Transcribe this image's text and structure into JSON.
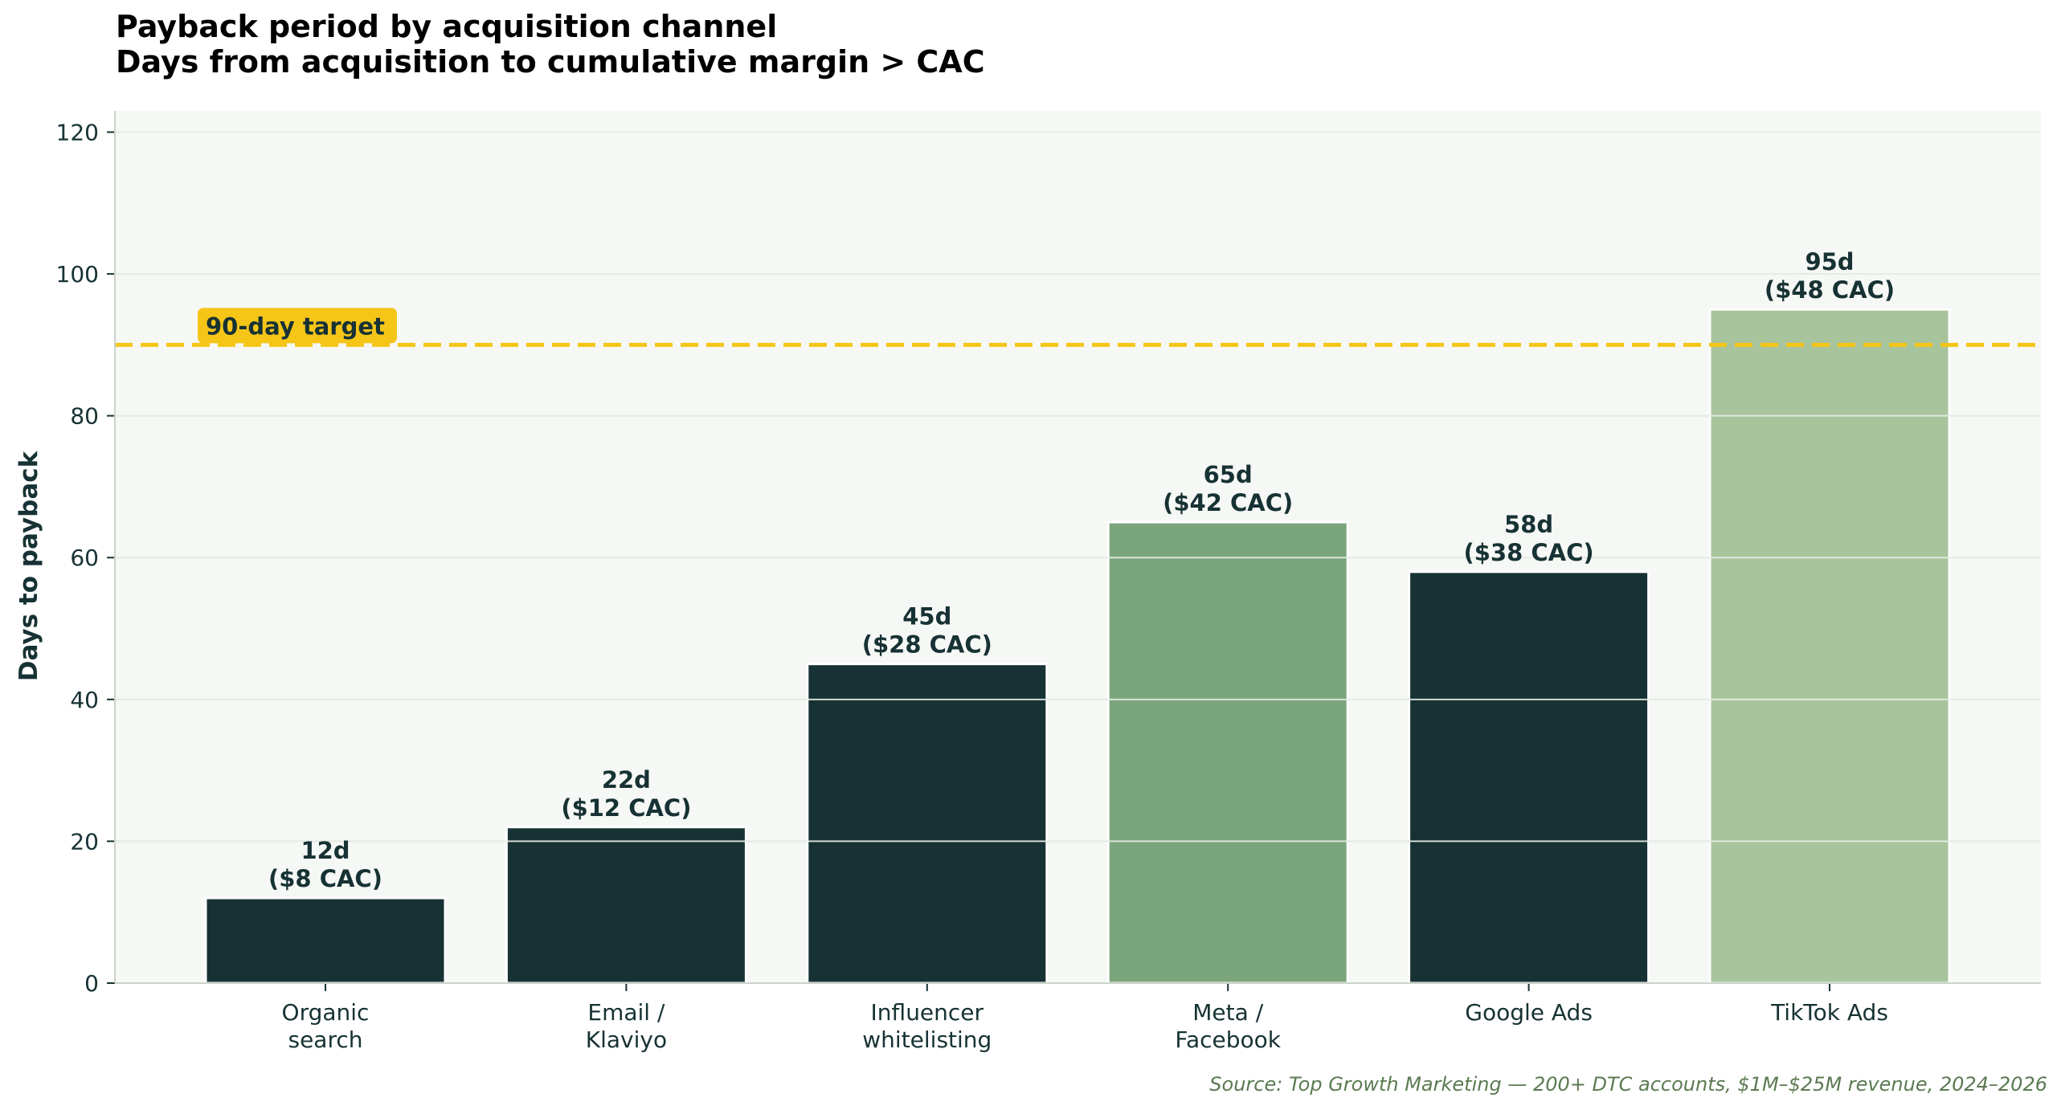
{
  "chart_data": {
    "type": "bar",
    "title": "Payback period by acquisition channel",
    "subtitle": "Days from acquisition to cumulative margin > CAC",
    "ylabel": "Days to payback",
    "xlabel": "",
    "ylim": [
      0,
      123
    ],
    "yticks": [
      0,
      20,
      40,
      60,
      80,
      100,
      120
    ],
    "grid": "horizontal",
    "categories": [
      [
        "Organic",
        "search"
      ],
      [
        "Email /",
        "Klaviyo"
      ],
      [
        "Influencer",
        "whitelisting"
      ],
      [
        "Meta /",
        "Facebook"
      ],
      [
        "Google Ads"
      ],
      [
        "TikTok Ads"
      ]
    ],
    "values": [
      12,
      22,
      45,
      65,
      58,
      95
    ],
    "value_labels": [
      "12d",
      "22d",
      "45d",
      "65d",
      "58d",
      "95d"
    ],
    "cac_labels": [
      "($8 CAC)",
      "($12 CAC)",
      "($28 CAC)",
      "($42 CAC)",
      "($38 CAC)",
      "($48 CAC)"
    ],
    "bar_colors": [
      "#173234",
      "#173234",
      "#173234",
      "#7ba57b",
      "#173234",
      "#a8c49c"
    ],
    "reference_line": {
      "value": 90,
      "label": "90-day target",
      "color": "#f5c518"
    },
    "source": "Source: Top Growth Marketing — 200+ DTC accounts, $1M–$25M revenue, 2024–2026"
  }
}
